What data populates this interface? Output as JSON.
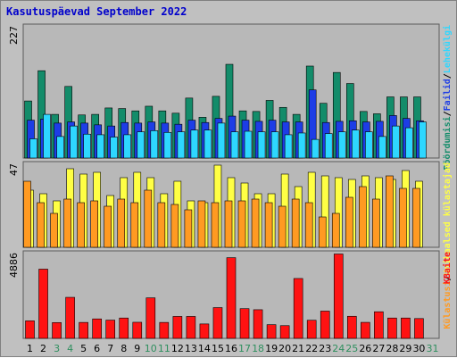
{
  "title": "Kasutuspäevad September 2022",
  "colors": {
    "pooordumisi": "#138c6a",
    "failid": "#1d3de6",
    "leheklgi": "#2ed7ff",
    "kulastusi": "#ffff44",
    "unikaalsed": "#ff9a22",
    "kbaite": "#ff1212",
    "weekday_label": "#000000",
    "weekend_label": "#2f8f5f",
    "panel_bg": "#b8b8b8"
  },
  "chart_data": [
    {
      "type": "bar",
      "panel": "top",
      "ymax_label": "227",
      "ylim": [
        0,
        227
      ],
      "categories": [
        "1",
        "2",
        "3",
        "4",
        "5",
        "6",
        "7",
        "8",
        "9",
        "10",
        "11",
        "12",
        "13",
        "14",
        "15",
        "16",
        "17",
        "18",
        "19",
        "20",
        "21",
        "22",
        "23",
        "24",
        "25",
        "26",
        "27",
        "28",
        "29",
        "30",
        "31"
      ],
      "series": [
        {
          "name": "Pöördumisi",
          "values": [
            98,
            150,
            75,
            123,
            74,
            75,
            86,
            85,
            81,
            89,
            81,
            77,
            103,
            70,
            106,
            161,
            81,
            80,
            99,
            87,
            75,
            158,
            94,
            147,
            128,
            80,
            76,
            105,
            105,
            105,
            0
          ]
        },
        {
          "name": "Failid",
          "values": [
            65,
            67,
            60,
            62,
            60,
            57,
            55,
            61,
            60,
            62,
            60,
            58,
            65,
            61,
            68,
            72,
            65,
            63,
            65,
            62,
            62,
            117,
            61,
            63,
            64,
            62,
            63,
            73,
            68,
            64,
            0
          ]
        },
        {
          "name": "Lehekülgi",
          "values": [
            33,
            75,
            37,
            55,
            41,
            40,
            36,
            40,
            45,
            47,
            44,
            45,
            48,
            48,
            60,
            45,
            46,
            45,
            45,
            40,
            43,
            32,
            42,
            45,
            48,
            45,
            37,
            55,
            52,
            62,
            0
          ]
        }
      ]
    },
    {
      "type": "bar",
      "panel": "middle",
      "ymax_label": "47",
      "ylim": [
        0,
        47
      ],
      "categories": [
        "1",
        "2",
        "3",
        "4",
        "5",
        "6",
        "7",
        "8",
        "9",
        "10",
        "11",
        "12",
        "13",
        "14",
        "15",
        "16",
        "17",
        "18",
        "19",
        "20",
        "21",
        "22",
        "23",
        "24",
        "25",
        "26",
        "27",
        "28",
        "29",
        "30",
        "31"
      ],
      "series": [
        {
          "name": "Külastusi",
          "values": [
            32,
            30,
            26,
            44,
            41,
            42,
            29,
            39,
            42,
            39,
            30,
            37,
            26,
            25,
            46,
            39,
            36,
            30,
            30,
            41,
            34,
            42,
            40,
            39,
            38,
            40,
            39,
            38,
            43,
            37,
            0
          ]
        },
        {
          "name": "Unikaalsed külastajad",
          "values": [
            37,
            25,
            19,
            27,
            25,
            26,
            23,
            27,
            25,
            32,
            25,
            24,
            21,
            26,
            25,
            26,
            26,
            27,
            25,
            23,
            27,
            25,
            17,
            19,
            28,
            34,
            27,
            40,
            33,
            33,
            0
          ]
        }
      ]
    },
    {
      "type": "bar",
      "panel": "bottom",
      "ymax_label": "4886",
      "ylim": [
        0,
        4886
      ],
      "categories": [
        "1",
        "2",
        "3",
        "4",
        "5",
        "6",
        "7",
        "8",
        "9",
        "10",
        "11",
        "12",
        "13",
        "14",
        "15",
        "16",
        "17",
        "18",
        "19",
        "20",
        "21",
        "22",
        "23",
        "24",
        "25",
        "26",
        "27",
        "28",
        "29",
        "30",
        "31"
      ],
      "series": [
        {
          "name": "KBaite",
          "values": [
            1000,
            3946,
            901,
            2339,
            909,
            1109,
            1040,
            1160,
            918,
            2310,
            909,
            1250,
            1250,
            821,
            1754,
            4600,
            1694,
            1633,
            781,
            725,
            3413,
            1032,
            1554,
            4810,
            1259,
            913,
            1517,
            1160,
            1160,
            1129,
            0
          ]
        }
      ]
    }
  ],
  "side_labels": {
    "top": [
      "Pöördumisi",
      "/",
      "Failid",
      "/",
      "Lehekülgi"
    ],
    "middle": [
      "Külastusi",
      "/",
      "Unikaalsed külastajad"
    ],
    "bottom": [
      "KBaite"
    ]
  },
  "weekend_days": [
    "3",
    "4",
    "10",
    "11",
    "17",
    "18",
    "24",
    "25",
    "31"
  ]
}
